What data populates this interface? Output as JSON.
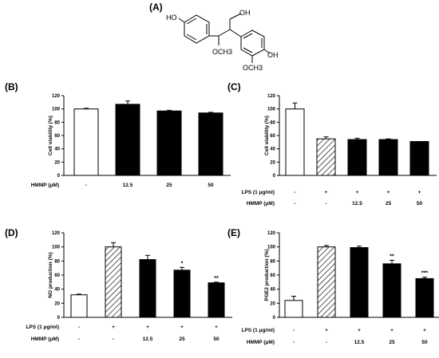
{
  "figure": {
    "structure": {
      "label": "(A)",
      "groups": [
        "HO",
        "OH",
        "OCH3",
        "OCH3",
        "OH"
      ]
    }
  },
  "chart_data": [
    {
      "id": "B",
      "panel_label": "(B)",
      "type": "bar",
      "ylabel": "Cell viability (%)",
      "ylim": [
        0,
        120
      ],
      "yticks": [
        0,
        20,
        40,
        60,
        80,
        100,
        120
      ],
      "treatment_rows": [
        {
          "label": "HMMP (μM)",
          "values": [
            "-",
            "12.5",
            "25",
            "50"
          ]
        }
      ],
      "values": [
        100,
        107,
        97,
        94
      ],
      "errors": [
        1,
        5,
        1,
        1
      ],
      "fills": [
        "white",
        "black",
        "black",
        "black"
      ],
      "annotations": [
        "",
        "",
        "",
        ""
      ]
    },
    {
      "id": "C",
      "panel_label": "(C)",
      "type": "bar",
      "ylabel": "Cell viability (%)",
      "ylim": [
        0,
        120
      ],
      "yticks": [
        0,
        20,
        40,
        60,
        80,
        100,
        120
      ],
      "treatment_rows": [
        {
          "label": "LPS (1 μg/ml)",
          "values": [
            "-",
            "+",
            "+",
            "+",
            "+"
          ]
        },
        {
          "label": "HMMP (μM)",
          "values": [
            "-",
            "-",
            "12.5",
            "25",
            "50"
          ]
        }
      ],
      "values": [
        100,
        55,
        54,
        54,
        51
      ],
      "errors": [
        9,
        3,
        2,
        1,
        0
      ],
      "fills": [
        "white",
        "hatch",
        "black",
        "black",
        "black"
      ],
      "annotations": [
        "",
        "",
        "",
        "",
        ""
      ]
    },
    {
      "id": "D",
      "panel_label": "(D)",
      "type": "bar",
      "ylabel": "NO production (%)",
      "ylim": [
        0,
        120
      ],
      "yticks": [
        0,
        20,
        40,
        60,
        80,
        100,
        120
      ],
      "treatment_rows": [
        {
          "label": "LPS (1 μg/ml)",
          "values": [
            "-",
            "+",
            "+",
            "+",
            "+"
          ]
        },
        {
          "label": "HMMP (μM)",
          "values": [
            "-",
            "-",
            "12.5",
            "25",
            "50"
          ]
        }
      ],
      "values": [
        32,
        100,
        82,
        67,
        49
      ],
      "errors": [
        1,
        6,
        6,
        4,
        1
      ],
      "fills": [
        "white",
        "hatch",
        "black",
        "black",
        "black"
      ],
      "annotations": [
        "",
        "",
        "",
        "*",
        "**"
      ]
    },
    {
      "id": "E",
      "panel_label": "(E)",
      "type": "bar",
      "ylabel": "PGE2 production (%)",
      "ylim": [
        0,
        120
      ],
      "yticks": [
        0,
        20,
        40,
        60,
        80,
        100,
        120
      ],
      "treatment_rows": [
        {
          "label": "LPS (1 μg/ml)",
          "values": [
            "-",
            "+",
            "+",
            "+",
            "+"
          ]
        },
        {
          "label": "HMMP (μM)",
          "values": [
            "-",
            "-",
            "12.5",
            "25",
            "50"
          ]
        }
      ],
      "values": [
        24,
        100,
        99,
        76,
        55
      ],
      "errors": [
        6,
        2,
        2,
        5,
        2
      ],
      "fills": [
        "white",
        "hatch",
        "black",
        "black",
        "black"
      ],
      "annotations": [
        "",
        "",
        "",
        "**",
        "***"
      ]
    }
  ]
}
